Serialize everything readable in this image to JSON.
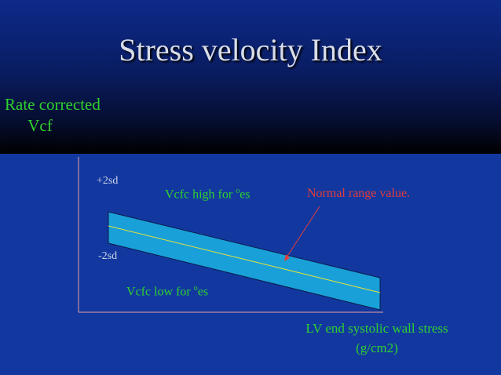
{
  "title": "Stress velocity Index",
  "y_axis_label": {
    "line1": "Rate corrected",
    "line2": "Vcf"
  },
  "x_axis_label": {
    "line1": "LV end systolic wall stress",
    "line2": "(g/cm2)"
  },
  "band": {
    "upper_label": "+2sd",
    "lower_label": "-2sd"
  },
  "annotations": {
    "high": {
      "text": "Vcfc high for ",
      "sup": "o",
      "suffix": "es"
    },
    "low": {
      "text": "Vcfc low for ",
      "sup": "o",
      "suffix": "es"
    },
    "normal": "Normal range value."
  },
  "colors": {
    "background": "#1238a0",
    "band_fill": "#19a0d8",
    "center_line": "#e0e040",
    "axis_line": "#e8a0a0",
    "green_text": "#2fd12f",
    "red_text": "#e23c3c"
  }
}
